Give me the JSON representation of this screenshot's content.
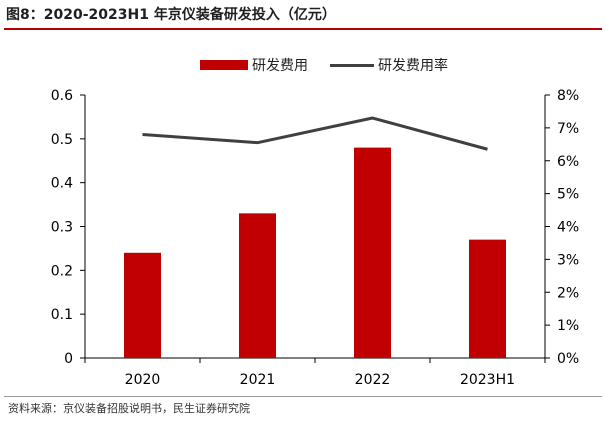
{
  "header": {
    "title": "图8：2020-2023H1 年京仪装备研发投入（亿元）"
  },
  "footer": {
    "source": "资料来源：京仪装备招股说明书，民生证券研究院"
  },
  "colors": {
    "bar": "#c00000",
    "line": "#404040",
    "axis": "#000000"
  },
  "chart_data": {
    "type": "bar",
    "categories": [
      "2020",
      "2021",
      "2022",
      "2023H1"
    ],
    "series": [
      {
        "name": "研发费用",
        "type": "bar",
        "axis": "left",
        "values": [
          0.24,
          0.33,
          0.48,
          0.27
        ]
      },
      {
        "name": "研发费用率",
        "type": "line",
        "axis": "right",
        "values": [
          0.068,
          0.0655,
          0.073,
          0.0635
        ]
      }
    ],
    "y_left": {
      "lim": [
        0,
        0.6
      ],
      "ticks": [
        "0",
        "0.1",
        "0.2",
        "0.3",
        "0.4",
        "0.5",
        "0.6"
      ],
      "tick_values": [
        0,
        0.1,
        0.2,
        0.3,
        0.4,
        0.5,
        0.6
      ]
    },
    "y_right": {
      "lim": [
        0,
        0.08
      ],
      "ticks": [
        "0%",
        "1%",
        "2%",
        "3%",
        "4%",
        "5%",
        "6%",
        "7%",
        "8%"
      ],
      "tick_values": [
        0,
        0.01,
        0.02,
        0.03,
        0.04,
        0.05,
        0.06,
        0.07,
        0.08
      ]
    },
    "legend": {
      "placement": "top-center",
      "entries": [
        "研发费用",
        "研发费用率"
      ]
    },
    "grid": false
  }
}
